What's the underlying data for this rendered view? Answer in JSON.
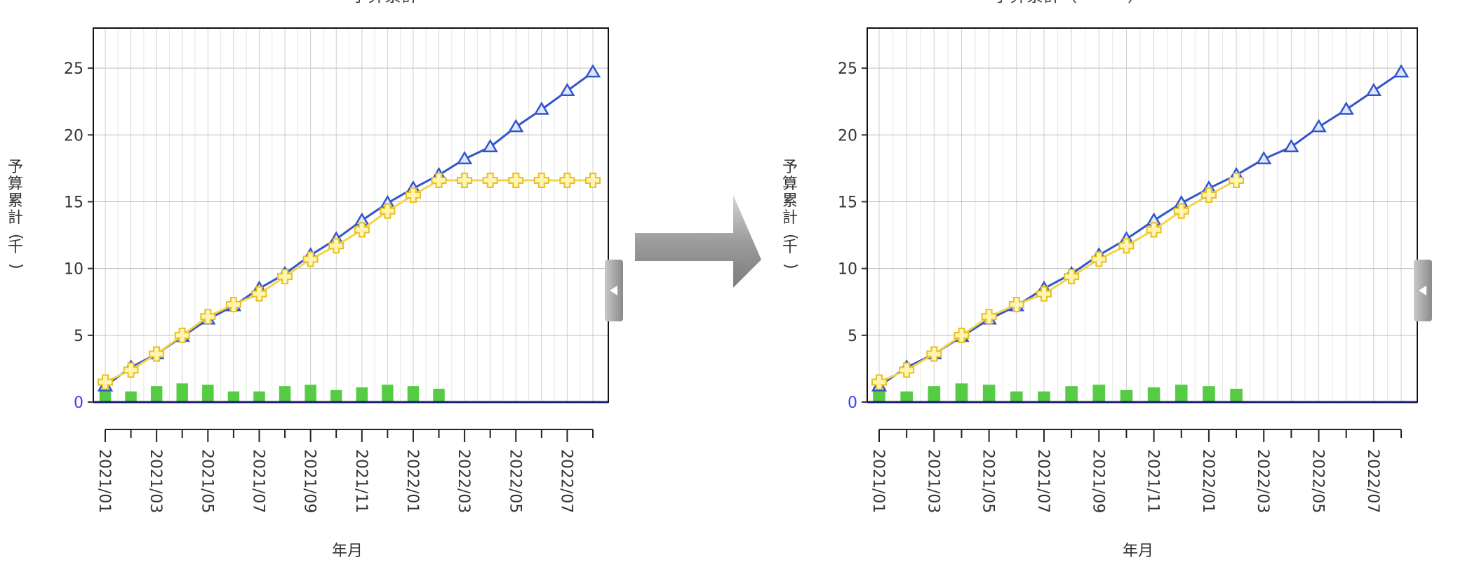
{
  "chart_data": [
    {
      "type": "line",
      "title": "予算累計",
      "xlabel": "年月",
      "ylabel": "予算累計(千)",
      "ylim": [
        0,
        28
      ],
      "y_ticks": [
        0,
        5,
        10,
        15,
        20,
        25
      ],
      "x": [
        "2021/01",
        "2021/02",
        "2021/03",
        "2021/04",
        "2021/05",
        "2021/06",
        "2021/07",
        "2021/08",
        "2021/09",
        "2021/10",
        "2021/11",
        "2021/12",
        "2022/01",
        "2022/02",
        "2022/03",
        "2022/04",
        "2022/05",
        "2022/06",
        "2022/07",
        "2022/08"
      ],
      "x_tick_labels": [
        "2021/01",
        "2021/03",
        "2021/05",
        "2021/07",
        "2021/09",
        "2021/11",
        "2022/01",
        "2022/03",
        "2022/05",
        "2022/07"
      ],
      "grid": true,
      "colors": {
        "blue": "#3355cc",
        "yellow": "#f0d040",
        "green": "#55cc44",
        "axis": "#1a1a6e"
      },
      "series": [
        {
          "marker": "triangle",
          "color": "#3355cc",
          "values": [
            1.2,
            2.6,
            3.6,
            4.9,
            6.2,
            7.2,
            8.5,
            9.6,
            11.0,
            12.2,
            13.6,
            14.9,
            16.0,
            17.0,
            18.2,
            19.1,
            20.6,
            21.9,
            23.3,
            24.7
          ]
        },
        {
          "marker": "cross",
          "color": "#f0d040",
          "values": [
            1.5,
            2.4,
            3.6,
            5.0,
            6.4,
            7.3,
            8.1,
            9.4,
            10.7,
            11.7,
            12.9,
            14.3,
            15.5,
            16.6,
            16.6,
            16.6,
            16.6,
            16.6,
            16.6,
            16.6
          ]
        },
        {
          "type": "bar",
          "color": "#55cc44",
          "values": [
            1.1,
            0.8,
            1.2,
            1.4,
            1.3,
            0.8,
            0.8,
            1.2,
            1.3,
            0.9,
            1.1,
            1.3,
            1.2,
            1.0,
            null,
            null,
            null,
            null,
            null,
            null
          ]
        }
      ]
    },
    {
      "type": "line",
      "title": "予算累計（・・・）",
      "xlabel": "年月",
      "ylabel": "予算累計(千)",
      "ylim": [
        0,
        28
      ],
      "y_ticks": [
        0,
        5,
        10,
        15,
        20,
        25
      ],
      "x": [
        "2021/01",
        "2021/02",
        "2021/03",
        "2021/04",
        "2021/05",
        "2021/06",
        "2021/07",
        "2021/08",
        "2021/09",
        "2021/10",
        "2021/11",
        "2021/12",
        "2022/01",
        "2022/02",
        "2022/03",
        "2022/04",
        "2022/05",
        "2022/06",
        "2022/07",
        "2022/08"
      ],
      "x_tick_labels": [
        "2021/01",
        "2021/03",
        "2021/05",
        "2021/07",
        "2021/09",
        "2021/11",
        "2022/01",
        "2022/03",
        "2022/05",
        "2022/07"
      ],
      "grid": true,
      "colors": {
        "blue": "#3355cc",
        "yellow": "#f0d040",
        "green": "#55cc44",
        "axis": "#1a1a6e"
      },
      "series": [
        {
          "marker": "triangle",
          "color": "#3355cc",
          "values": [
            1.2,
            2.6,
            3.6,
            4.9,
            6.2,
            7.2,
            8.5,
            9.6,
            11.0,
            12.2,
            13.6,
            14.9,
            16.0,
            17.0,
            18.2,
            19.1,
            20.6,
            21.9,
            23.3,
            24.7
          ]
        },
        {
          "marker": "cross",
          "color": "#f0d040",
          "values": [
            1.5,
            2.4,
            3.6,
            5.0,
            6.4,
            7.3,
            8.1,
            9.4,
            10.7,
            11.7,
            12.9,
            14.3,
            15.5,
            16.6,
            null,
            null,
            null,
            null,
            null,
            null
          ]
        },
        {
          "type": "bar",
          "color": "#55cc44",
          "values": [
            1.1,
            0.8,
            1.2,
            1.4,
            1.3,
            0.8,
            0.8,
            1.2,
            1.3,
            0.9,
            1.1,
            1.3,
            1.2,
            1.0,
            null,
            null,
            null,
            null,
            null,
            null
          ]
        }
      ]
    }
  ],
  "arrow": {
    "icon": "right-arrow-icon",
    "color": "#9a9a9a"
  },
  "collapse_handle": {
    "icon": "triangle-left-icon",
    "color": "#8a8a8a"
  }
}
